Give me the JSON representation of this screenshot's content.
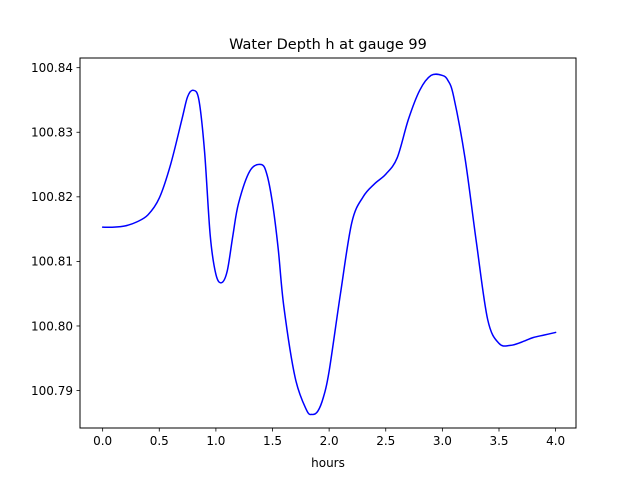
{
  "chart_data": {
    "type": "line",
    "title": "Water Depth h at gauge 99",
    "xlabel": "hours",
    "ylabel": "",
    "xlim": [
      -0.2,
      4.18
    ],
    "ylim": [
      100.7842,
      100.8415
    ],
    "xticks": [
      0.0,
      0.5,
      1.0,
      1.5,
      2.0,
      2.5,
      3.0,
      3.5,
      4.0
    ],
    "xtick_labels": [
      "0.0",
      "0.5",
      "1.0",
      "1.5",
      "2.0",
      "2.5",
      "3.0",
      "3.5",
      "4.0"
    ],
    "yticks": [
      100.79,
      100.8,
      100.81,
      100.82,
      100.83,
      100.84
    ],
    "ytick_labels": [
      "100.79",
      "100.80",
      "100.81",
      "100.82",
      "100.83",
      "100.84"
    ],
    "grid": false,
    "series": [
      {
        "color": "#0000ff",
        "x": [
          0.0,
          0.1,
          0.2,
          0.3,
          0.4,
          0.5,
          0.6,
          0.7,
          0.75,
          0.8,
          0.85,
          0.9,
          0.95,
          1.0,
          1.05,
          1.1,
          1.15,
          1.2,
          1.3,
          1.4,
          1.45,
          1.5,
          1.55,
          1.6,
          1.7,
          1.8,
          1.85,
          1.9,
          1.95,
          2.0,
          2.1,
          2.2,
          2.3,
          2.4,
          2.5,
          2.6,
          2.7,
          2.8,
          2.9,
          3.0,
          3.05,
          3.1,
          3.2,
          3.3,
          3.4,
          3.5,
          3.6,
          3.7,
          3.8,
          3.9,
          4.0
        ],
        "y": [
          100.8153,
          100.8153,
          100.8155,
          100.8161,
          100.8172,
          100.8198,
          100.825,
          100.832,
          100.8355,
          100.8365,
          100.835,
          100.827,
          100.814,
          100.808,
          100.8067,
          100.8085,
          100.814,
          100.819,
          100.824,
          100.825,
          100.8235,
          100.819,
          100.812,
          100.803,
          100.792,
          100.787,
          100.7863,
          100.7868,
          100.789,
          100.793,
          100.805,
          100.816,
          100.82,
          100.822,
          100.8235,
          100.826,
          100.832,
          100.8365,
          100.8388,
          100.8388,
          100.838,
          100.8355,
          100.826,
          100.813,
          100.801,
          100.7973,
          100.797,
          100.7975,
          100.7982,
          100.7986,
          100.799
        ]
      }
    ]
  }
}
